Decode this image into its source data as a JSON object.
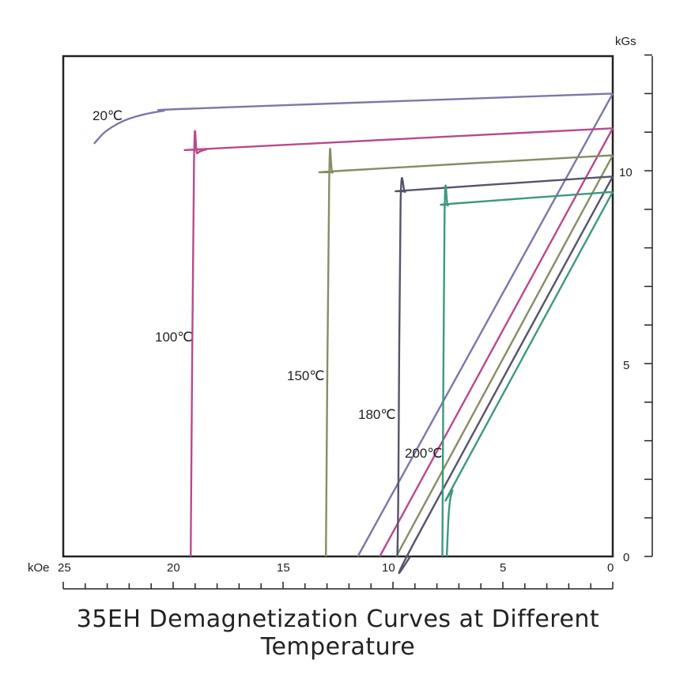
{
  "chart_data": {
    "type": "line",
    "title": "35EH Demagnetization Curves at Different Temperature",
    "x_unit": "kOe",
    "y_unit": "kGs",
    "xlim": [
      25,
      0
    ],
    "ylim": [
      0,
      12.8
    ],
    "x_ticks": [
      25,
      20,
      15,
      10,
      5,
      0
    ],
    "y_ticks": [
      0,
      5,
      10
    ],
    "series": [
      {
        "name": "20℃",
        "color": "#7b77ab",
        "knee_points": [
          [
            23.6,
            10.7
          ],
          [
            23.0,
            11.05
          ],
          [
            22.0,
            11.35
          ],
          [
            20.5,
            11.55
          ],
          [
            18.7,
            11.62
          ],
          [
            0,
            12.0
          ]
        ],
        "recoil_points": [
          [
            11.6,
            0
          ],
          [
            0,
            12.0
          ]
        ]
      },
      {
        "name": "100℃",
        "color": "#b94a8b",
        "knee_points": [
          [
            19.2,
            0
          ],
          [
            19.05,
            10.2
          ],
          [
            18.9,
            10.45
          ],
          [
            18.5,
            10.55
          ],
          [
            18.0,
            10.58
          ],
          [
            0,
            11.1
          ]
        ],
        "recoil_points": [
          [
            10.6,
            0
          ],
          [
            0,
            11.1
          ]
        ]
      },
      {
        "name": "150℃",
        "color": "#858e63",
        "knee_points": [
          [
            13.05,
            0
          ],
          [
            12.9,
            9.8
          ],
          [
            12.75,
            9.95
          ],
          [
            12.3,
            10.0
          ],
          [
            0,
            10.4
          ]
        ],
        "recoil_points": [
          [
            9.85,
            0
          ],
          [
            0,
            10.4
          ]
        ]
      },
      {
        "name": "180℃",
        "color": "#545569",
        "knee_points": [
          [
            9.8,
            0
          ],
          [
            9.75,
            2.0
          ],
          [
            9.65,
            9.2
          ],
          [
            9.45,
            9.45
          ],
          [
            9.1,
            9.5
          ],
          [
            0,
            9.85
          ]
        ],
        "recoil_points": [
          [
            9.2,
            0
          ],
          [
            9.0,
            0.4
          ],
          [
            0,
            9.85
          ]
        ]
      },
      {
        "name": "200℃",
        "color": "#3e9880",
        "knee_points": [
          [
            7.75,
            0
          ],
          [
            7.65,
            8.9
          ],
          [
            7.5,
            9.1
          ],
          [
            7.2,
            9.15
          ],
          [
            0,
            9.45
          ]
        ],
        "recoil_points": [
          [
            7.55,
            0
          ],
          [
            7.45,
            1.2
          ],
          [
            7.3,
            1.7
          ],
          [
            7.0,
            2.1
          ],
          [
            0,
            9.45
          ]
        ]
      }
    ]
  },
  "labels": {
    "x_unit": "kOe",
    "y_unit": "kGs",
    "x_tick_25": "25",
    "x_tick_20": "20",
    "x_tick_15": "15",
    "x_tick_10": "10",
    "x_tick_5": "5",
    "x_tick_0": "0",
    "y_tick_0": "0",
    "y_tick_5": "5",
    "y_tick_10": "10",
    "curve_20": "20℃",
    "curve_100": "100℃",
    "curve_150": "150℃",
    "curve_180": "180℃",
    "curve_200": "200℃",
    "title": "35EH Demagnetization Curves at Different Temperature"
  }
}
